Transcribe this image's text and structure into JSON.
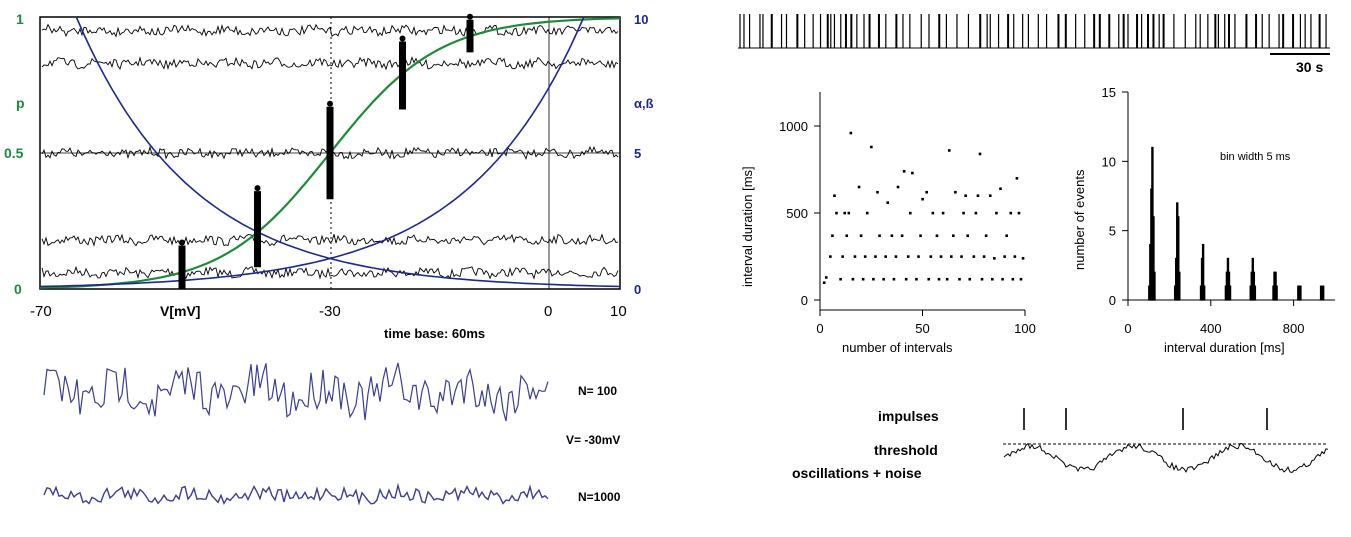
{
  "colors": {
    "green": "#1f8a3a",
    "blue": "#1b2a8c",
    "trace": "#3a3f8f",
    "black": "#000000"
  },
  "panel_a": {
    "x_ticks": [
      "-70",
      "-30",
      "0",
      "10"
    ],
    "x_label": "V[mV]",
    "y_left_ticks": [
      "0",
      "0.5",
      "1"
    ],
    "y_left_label": "p",
    "y_right_ticks": [
      "0",
      "5",
      "10"
    ],
    "y_right_label": "α,ß",
    "time_base": "time base:  60ms"
  },
  "panel_b": {
    "n100": "N= 100",
    "vlabel": "V= -30mV",
    "n1000": "N=1000"
  },
  "panel_c": {
    "scale": "30 s"
  },
  "panel_f": {
    "impulses": "impulses",
    "threshold": "threshold",
    "osc": "oscillations + noise"
  },
  "chart_data": [
    {
      "type": "line",
      "title": "",
      "xlabel": "V[mV]",
      "ylabel": "p",
      "y2label": "α,ß",
      "xlim": [
        -70,
        10
      ],
      "ylim": [
        0,
        1
      ],
      "y2lim": [
        0,
        10
      ],
      "grid": false,
      "series": [
        {
          "values_x": [
            -70,
            -60,
            -50,
            -40,
            -30,
            -20,
            -10,
            0,
            10
          ],
          "values_y": [
            0,
            0.01,
            0.05,
            0.22,
            0.5,
            0.78,
            0.95,
            0.99,
            1.0
          ]
        },
        {
          "values_x": [
            -65,
            -60,
            -50,
            -40,
            -30,
            -20,
            -10,
            0,
            10
          ],
          "values_y": [
            10,
            8.2,
            5.2,
            2.5,
            1.2,
            0.6,
            0.3,
            0.1,
            0
          ]
        },
        {
          "values_x": [
            -70,
            -60,
            -50,
            -40,
            -30,
            -20,
            -10,
            0,
            5
          ],
          "values_y": [
            0,
            0.05,
            0.15,
            0.4,
            1.0,
            2.2,
            4.5,
            8.0,
            10
          ]
        }
      ],
      "dot_columns": [
        {
          "v": -50,
          "p_low": 0.0,
          "p_high": 0.16
        },
        {
          "v": -40,
          "p_low": 0.08,
          "p_high": 0.36
        },
        {
          "v": -30,
          "p_low": 0.33,
          "p_high": 0.67
        },
        {
          "v": -20,
          "p_low": 0.66,
          "p_high": 0.91
        },
        {
          "v": -10,
          "p_low": 0.87,
          "p_high": 0.99
        }
      ],
      "noise_trace_levels": [
        0.06,
        0.18,
        0.5,
        0.83,
        0.95
      ]
    },
    {
      "type": "scatter",
      "title": "",
      "xlabel": "number of intervals",
      "ylabel": "interval duration [ms]",
      "xlim": [
        0,
        100
      ],
      "ylim": [
        0,
        1200
      ],
      "x_ticks": [
        "0",
        "50",
        "100"
      ],
      "y_ticks": [
        "0",
        "500",
        "1000"
      ],
      "points": [
        [
          2,
          100
        ],
        [
          3,
          130
        ],
        [
          5,
          250
        ],
        [
          6,
          370
        ],
        [
          7,
          600
        ],
        [
          8,
          500
        ],
        [
          10,
          120
        ],
        [
          11,
          250
        ],
        [
          12,
          500
        ],
        [
          13,
          370
        ],
        [
          14,
          500
        ],
        [
          15,
          960
        ],
        [
          16,
          120
        ],
        [
          17,
          250
        ],
        [
          19,
          650
        ],
        [
          20,
          370
        ],
        [
          21,
          120
        ],
        [
          22,
          250
        ],
        [
          23,
          500
        ],
        [
          25,
          880
        ],
        [
          26,
          120
        ],
        [
          27,
          250
        ],
        [
          28,
          620
        ],
        [
          29,
          370
        ],
        [
          31,
          120
        ],
        [
          32,
          250
        ],
        [
          33,
          560
        ],
        [
          35,
          370
        ],
        [
          36,
          120
        ],
        [
          37,
          250
        ],
        [
          38,
          650
        ],
        [
          40,
          370
        ],
        [
          41,
          740
        ],
        [
          42,
          120
        ],
        [
          43,
          250
        ],
        [
          44,
          500
        ],
        [
          45,
          730
        ],
        [
          47,
          120
        ],
        [
          48,
          250
        ],
        [
          49,
          370
        ],
        [
          50,
          580
        ],
        [
          52,
          620
        ],
        [
          53,
          120
        ],
        [
          54,
          250
        ],
        [
          55,
          500
        ],
        [
          57,
          370
        ],
        [
          58,
          120
        ],
        [
          59,
          250
        ],
        [
          60,
          500
        ],
        [
          62,
          120
        ],
        [
          63,
          860
        ],
        [
          64,
          250
        ],
        [
          65,
          370
        ],
        [
          66,
          620
        ],
        [
          68,
          120
        ],
        [
          69,
          250
        ],
        [
          70,
          500
        ],
        [
          71,
          600
        ],
        [
          72,
          370
        ],
        [
          73,
          120
        ],
        [
          75,
          250
        ],
        [
          76,
          500
        ],
        [
          77,
          600
        ],
        [
          78,
          840
        ],
        [
          79,
          120
        ],
        [
          80,
          250
        ],
        [
          81,
          370
        ],
        [
          83,
          600
        ],
        [
          84,
          120
        ],
        [
          85,
          240
        ],
        [
          86,
          500
        ],
        [
          88,
          640
        ],
        [
          89,
          120
        ],
        [
          90,
          250
        ],
        [
          91,
          370
        ],
        [
          93,
          500
        ],
        [
          94,
          120
        ],
        [
          95,
          250
        ],
        [
          96,
          700
        ],
        [
          97,
          500
        ],
        [
          98,
          120
        ],
        [
          99,
          240
        ]
      ]
    },
    {
      "type": "bar",
      "title": "",
      "subtitle": "bin width 5 ms",
      "xlabel": "interval duration [ms]",
      "ylabel": "number of events",
      "xlim": [
        0,
        1000
      ],
      "ylim": [
        0,
        15
      ],
      "x_ticks": [
        "0",
        "400",
        "800"
      ],
      "y_ticks": [
        "0",
        "5",
        "10",
        "15"
      ],
      "histogram": [
        [
          100,
          1
        ],
        [
          105,
          4
        ],
        [
          110,
          8
        ],
        [
          115,
          11
        ],
        [
          120,
          6
        ],
        [
          125,
          2
        ],
        [
          225,
          1
        ],
        [
          230,
          3
        ],
        [
          235,
          7
        ],
        [
          240,
          6
        ],
        [
          245,
          2
        ],
        [
          350,
          1
        ],
        [
          355,
          3
        ],
        [
          360,
          4
        ],
        [
          365,
          1
        ],
        [
          470,
          1
        ],
        [
          475,
          2
        ],
        [
          480,
          3
        ],
        [
          485,
          2
        ],
        [
          490,
          1
        ],
        [
          590,
          1
        ],
        [
          595,
          2
        ],
        [
          600,
          3
        ],
        [
          605,
          2
        ],
        [
          610,
          1
        ],
        [
          700,
          1
        ],
        [
          705,
          2
        ],
        [
          710,
          2
        ],
        [
          715,
          1
        ],
        [
          820,
          1
        ],
        [
          825,
          1
        ],
        [
          830,
          1
        ],
        [
          930,
          1
        ],
        [
          940,
          1
        ]
      ]
    }
  ]
}
